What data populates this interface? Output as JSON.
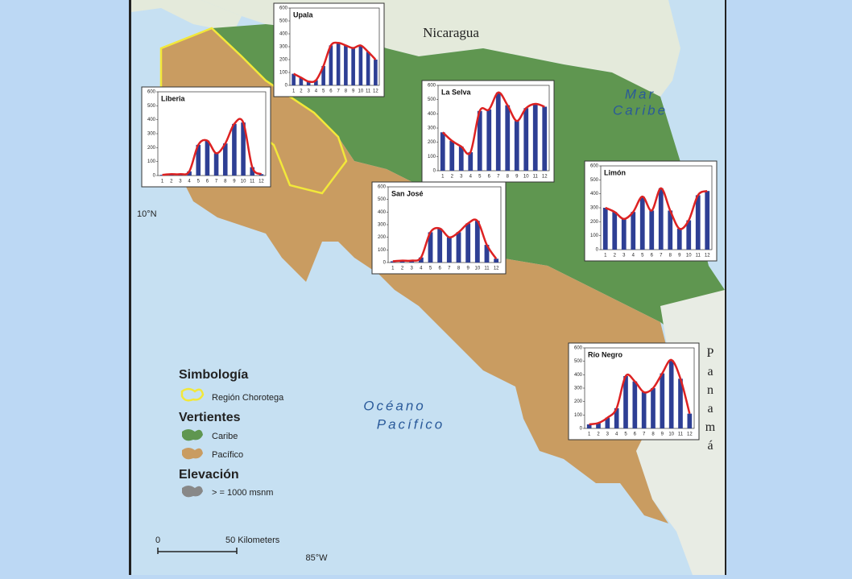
{
  "map": {
    "country_north": "Nicaragua",
    "sea_east": [
      "Mar",
      "Caribe"
    ],
    "sea_west": [
      "Océano",
      "Pacífico"
    ],
    "country_south": "Panamá",
    "latitude": "10°N",
    "longitude": "85°W"
  },
  "legend": {
    "title": "Simbología",
    "region": "Región Chorotega",
    "watersheds_title": "Vertientes",
    "caribbean": "Caribe",
    "pacific": "Pacífico",
    "elevation_title": "Elevación",
    "elevation": "> = 1000 msnm"
  },
  "scale_bar": {
    "start": "0",
    "end": "50 Kilometers"
  },
  "chart_data": [
    {
      "type": "bar",
      "title": "Upala",
      "categories": [
        "1",
        "2",
        "3",
        "4",
        "5",
        "6",
        "7",
        "8",
        "9",
        "10",
        "11",
        "12"
      ],
      "values": [
        90,
        60,
        30,
        40,
        150,
        310,
        330,
        310,
        290,
        310,
        260,
        200
      ],
      "color": "#2e3f94",
      "line_color": "#dd2222",
      "ylim": [
        0,
        600
      ],
      "yticks": [
        0,
        100,
        200,
        300,
        400,
        500,
        600
      ]
    },
    {
      "type": "bar",
      "title": "Liberia",
      "categories": [
        "1",
        "2",
        "3",
        "4",
        "5",
        "6",
        "7",
        "8",
        "9",
        "10",
        "11",
        "12"
      ],
      "values": [
        5,
        10,
        10,
        30,
        220,
        250,
        160,
        230,
        370,
        380,
        60,
        10
      ],
      "color": "#2e3f94",
      "line_color": "#dd2222",
      "ylim": [
        0,
        600
      ],
      "yticks": [
        0,
        100,
        200,
        300,
        400,
        500,
        600
      ]
    },
    {
      "type": "bar",
      "title": "La Selva",
      "categories": [
        "1",
        "2",
        "3",
        "4",
        "5",
        "6",
        "7",
        "8",
        "9",
        "10",
        "11",
        "12"
      ],
      "values": [
        270,
        210,
        170,
        130,
        420,
        430,
        550,
        460,
        350,
        440,
        470,
        450
      ],
      "color": "#2e3f94",
      "line_color": "#dd2222",
      "ylim": [
        0,
        600
      ],
      "yticks": [
        0,
        100,
        200,
        300,
        400,
        500,
        600
      ]
    },
    {
      "type": "bar",
      "title": "San José",
      "categories": [
        "1",
        "2",
        "3",
        "4",
        "5",
        "6",
        "7",
        "8",
        "9",
        "10",
        "11",
        "12"
      ],
      "values": [
        10,
        15,
        15,
        40,
        240,
        270,
        200,
        240,
        310,
        330,
        140,
        30
      ],
      "color": "#2e3f94",
      "line_color": "#dd2222",
      "ylim": [
        0,
        600
      ],
      "yticks": [
        0,
        100,
        200,
        300,
        400,
        500,
        600
      ]
    },
    {
      "type": "bar",
      "title": "Limón",
      "categories": [
        "1",
        "2",
        "3",
        "4",
        "5",
        "6",
        "7",
        "8",
        "9",
        "10",
        "11",
        "12"
      ],
      "values": [
        300,
        270,
        220,
        270,
        380,
        280,
        440,
        280,
        150,
        210,
        390,
        420
      ],
      "color": "#2e3f94",
      "line_color": "#dd2222",
      "ylim": [
        0,
        600
      ],
      "yticks": [
        0,
        100,
        200,
        300,
        400,
        500,
        600
      ]
    },
    {
      "type": "bar",
      "title": "Río Negro",
      "categories": [
        "1",
        "2",
        "3",
        "4",
        "5",
        "6",
        "7",
        "8",
        "9",
        "10",
        "11",
        "12"
      ],
      "values": [
        30,
        40,
        80,
        150,
        390,
        350,
        270,
        300,
        410,
        510,
        370,
        110
      ],
      "color": "#2e3f94",
      "line_color": "#dd2222",
      "ylim": [
        0,
        600
      ],
      "yticks": [
        0,
        100,
        200,
        300,
        400,
        500,
        600
      ]
    }
  ]
}
